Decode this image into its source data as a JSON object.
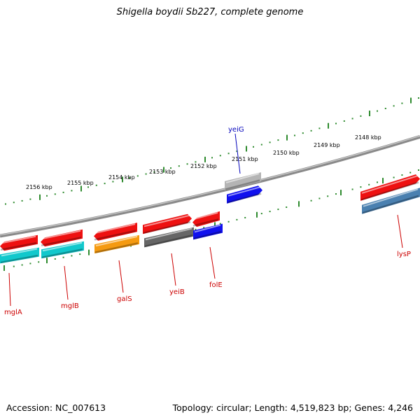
{
  "title": "Shigella boydii Sb227, complete genome",
  "footer": {
    "accession": "Accession: NC_007613",
    "summary": "Topology: circular; Length: 4,519,823 bp; Genes: 4,246"
  },
  "colors": {
    "red": "#ee1111",
    "cyan": "#11c8cc",
    "orange": "#f59a10",
    "darkgray": "#666666",
    "blue": "#1111ee",
    "lightgray": "#b4b4b4",
    "steelblue": "#4a80b0",
    "tick": "#2e8b2e",
    "backbone": "#8a8a8a",
    "label_red": "#cc0000",
    "label_blue": "#0000bb"
  },
  "scale_labels": [
    "2156 kbp",
    "2155 kbp",
    "2154 kbp",
    "2153 kbp",
    "2152 kbp",
    "2151 kbp",
    "2150 kbp",
    "2149 kbp",
    "2148 kbp"
  ],
  "gene_labels": [
    "mglA",
    "mglB",
    "galS",
    "yeiB",
    "folE",
    "yeiG",
    "lysP"
  ],
  "features": [
    {
      "row": "outer",
      "color": "red"
    },
    {
      "row": "outer",
      "color": "red"
    },
    {
      "row": "outer",
      "color": "red"
    },
    {
      "row": "outer",
      "color": "red"
    },
    {
      "row": "outer",
      "color": "red"
    },
    {
      "row": "outer",
      "color": "red"
    },
    {
      "row": "inner",
      "color": "cyan"
    },
    {
      "row": "inner",
      "color": "cyan"
    },
    {
      "row": "inner",
      "color": "orange"
    },
    {
      "row": "inner",
      "color": "darkgray"
    },
    {
      "row": "inner",
      "color": "blue"
    },
    {
      "row": "upper",
      "color": "lightgray"
    },
    {
      "row": "upper",
      "color": "blue"
    },
    {
      "row": "inner",
      "color": "steelblue"
    }
  ]
}
